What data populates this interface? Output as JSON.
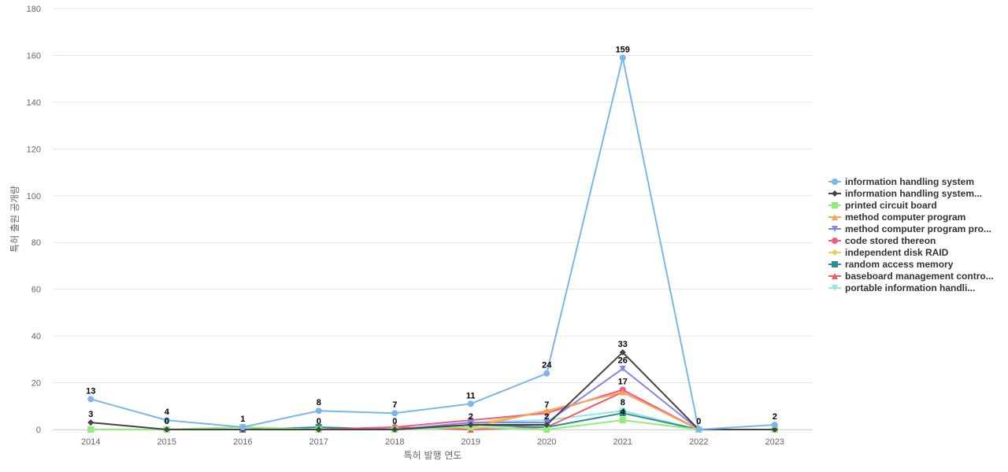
{
  "chart_data": {
    "type": "line",
    "title": "",
    "xlabel": "특허 발행 연도",
    "ylabel": "특허 출원 공개량",
    "ylim": [
      0,
      180
    ],
    "yticks": [
      0,
      20,
      40,
      60,
      80,
      100,
      120,
      140,
      160,
      180
    ],
    "categories": [
      "2014",
      "2015",
      "2016",
      "2017",
      "2018",
      "2019",
      "2020",
      "2021",
      "2022",
      "2023"
    ],
    "grid": true,
    "legend_position": "right",
    "series": [
      {
        "name": "information handling system",
        "color": "#7cb5ec",
        "marker": "circle",
        "values": [
          13,
          4,
          1,
          8,
          7,
          11,
          24,
          159,
          0,
          2
        ],
        "labeled": true
      },
      {
        "name": "information handling system...",
        "color": "#434348",
        "marker": "diamond",
        "values": [
          3,
          0,
          0,
          0,
          0,
          2,
          2,
          33,
          0,
          0
        ],
        "labeled": true
      },
      {
        "name": "printed circuit board",
        "color": "#90ed7d",
        "marker": "square",
        "values": [
          0,
          0,
          1,
          0,
          0,
          1,
          0,
          4,
          0,
          0
        ],
        "labeled": false
      },
      {
        "name": "method computer program",
        "color": "#f7a35c",
        "marker": "triangle",
        "values": [
          0,
          0,
          1,
          0,
          0,
          1,
          8,
          16,
          0,
          0
        ],
        "labeled": false
      },
      {
        "name": "method computer program pro...",
        "color": "#8085e9",
        "marker": "triangle-down",
        "values": [
          0,
          0,
          0,
          0,
          0,
          3,
          3,
          26,
          0,
          0
        ],
        "labeled": false
      },
      {
        "name": "code stored thereon",
        "color": "#f15c80",
        "marker": "circle",
        "values": [
          0,
          0,
          0,
          0,
          1,
          4,
          7,
          17,
          0,
          0
        ],
        "labeled": false
      },
      {
        "name": "independent disk RAID",
        "color": "#e4d354",
        "marker": "diamond",
        "values": [
          0,
          0,
          0,
          0,
          0,
          2,
          8,
          16,
          0,
          0
        ],
        "labeled": false
      },
      {
        "name": "random access memory",
        "color": "#2b908f",
        "marker": "square",
        "values": [
          0,
          0,
          0,
          1,
          0,
          2,
          1,
          7,
          0,
          0
        ],
        "labeled": false
      },
      {
        "name": "baseboard management contro...",
        "color": "#f45b5b",
        "marker": "triangle",
        "values": [
          0,
          0,
          0,
          0,
          1,
          0,
          1,
          16,
          0,
          0
        ],
        "labeled": false
      },
      {
        "name": "portable information handli...",
        "color": "#91e8e1",
        "marker": "triangle-down",
        "values": [
          0,
          0,
          0,
          0,
          0,
          3,
          4,
          8,
          0,
          0
        ],
        "labeled": false
      }
    ],
    "data_labels": [
      {
        "category": "2014",
        "text": "13",
        "value": 13
      },
      {
        "category": "2014",
        "text": "3",
        "value": 3
      },
      {
        "category": "2015",
        "text": "4",
        "value": 4
      },
      {
        "category": "2015",
        "text": "0",
        "value": 0
      },
      {
        "category": "2016",
        "text": "1",
        "value": 1
      },
      {
        "category": "2017",
        "text": "8",
        "value": 8
      },
      {
        "category": "2017",
        "text": "0",
        "value": 0
      },
      {
        "category": "2018",
        "text": "7",
        "value": 7
      },
      {
        "category": "2018",
        "text": "0",
        "value": 0
      },
      {
        "category": "2019",
        "text": "11",
        "value": 11
      },
      {
        "category": "2019",
        "text": "2",
        "value": 2
      },
      {
        "category": "2020",
        "text": "24",
        "value": 24
      },
      {
        "category": "2020",
        "text": "7",
        "value": 7
      },
      {
        "category": "2020",
        "text": "2",
        "value": 2
      },
      {
        "category": "2021",
        "text": "159",
        "value": 159
      },
      {
        "category": "2021",
        "text": "33",
        "value": 33
      },
      {
        "category": "2021",
        "text": "26",
        "value": 26
      },
      {
        "category": "2021",
        "text": "17",
        "value": 17
      },
      {
        "category": "2021",
        "text": "8",
        "value": 8
      },
      {
        "category": "2021",
        "text": "4",
        "value": 4
      },
      {
        "category": "2022",
        "text": "0",
        "value": 0
      },
      {
        "category": "2023",
        "text": "2",
        "value": 2
      }
    ]
  }
}
